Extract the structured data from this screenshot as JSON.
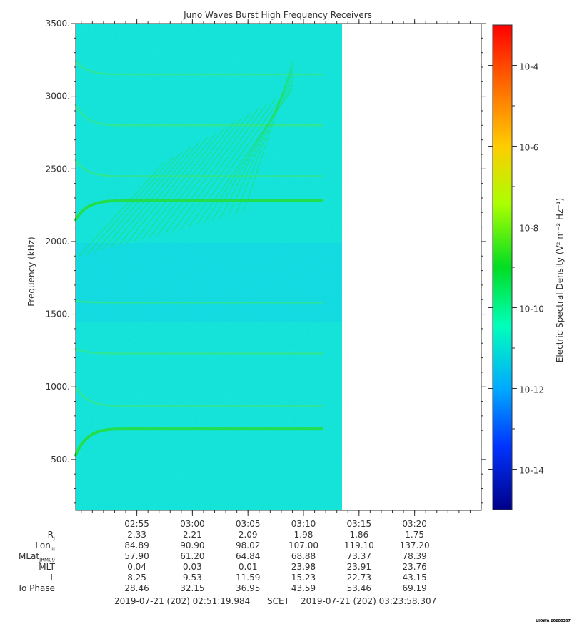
{
  "chart_data": {
    "type": "heatmap",
    "title": "Juno Waves Burst High Frequency Receivers",
    "ylabel": "Frequency (kHz)",
    "ylim": [
      150,
      3500
    ],
    "yticks": [
      "500.",
      "1000.",
      "1500.",
      "2000.",
      "2500.",
      "3000.",
      "3500."
    ],
    "x_ticks": [
      "02:55",
      "03:00",
      "03:05",
      "03:10",
      "03:15",
      "03:20"
    ],
    "x_range": [
      "02:49:30",
      "03:26:00"
    ],
    "data_coverage_end": "03:11:40",
    "emission_lines": [
      {
        "name": "band-3150",
        "start_khz": 3240,
        "end_khz": 3150
      },
      {
        "name": "band-2800",
        "start_khz": 2940,
        "end_khz": 2800
      },
      {
        "name": "band-2450",
        "start_khz": 2560,
        "end_khz": 2450
      },
      {
        "name": "band-2270",
        "start_khz": 2150,
        "end_khz": 2280
      },
      {
        "name": "band-1580",
        "start_khz": 1590,
        "end_khz": 1580
      },
      {
        "name": "band-1230",
        "start_khz": 1260,
        "end_khz": 1230
      },
      {
        "name": "band-870",
        "start_khz": 1000,
        "end_khz": 870
      },
      {
        "name": "band-700",
        "start_khz": 530,
        "end_khz": 710
      }
    ],
    "colorbar": {
      "label": "Electric Spectral Density (V² m⁻² Hz⁻¹)",
      "ticks": [
        "10-4",
        "10-6",
        "10-8",
        "10-10",
        "10-12",
        "10-14"
      ],
      "colors": [
        "#ff0000",
        "#ff8800",
        "#ffff00",
        "#88ff00",
        "#00cc33",
        "#00ffcc",
        "#00aaff",
        "#0044ff",
        "#0000aa"
      ]
    }
  },
  "ephemeris": {
    "rows": [
      {
        "name": "R",
        "sub": "J",
        "values": [
          "2.33",
          "2.21",
          "2.09",
          "1.98",
          "1.86",
          "1.75"
        ]
      },
      {
        "name": "Lon",
        "sub": "III",
        "values": [
          "84.89",
          "90.90",
          "98.02",
          "107.00",
          "119.10",
          "137.20"
        ]
      },
      {
        "name": "MLat",
        "sub": "JRM09",
        "values": [
          "57.90",
          "61.20",
          "64.84",
          "68.88",
          "73.37",
          "78.39"
        ]
      },
      {
        "name": "MLT",
        "sub": "",
        "values": [
          "0.04",
          "0.03",
          "0.01",
          "23.98",
          "23.91",
          "23.76"
        ]
      },
      {
        "name": "L",
        "sub": "",
        "values": [
          "8.25",
          "9.53",
          "11.59",
          "15.23",
          "22.73",
          "43.15"
        ]
      },
      {
        "name": "Io Phase",
        "sub": "",
        "values": [
          "28.46",
          "32.15",
          "36.95",
          "43.59",
          "53.46",
          "69.19"
        ]
      }
    ]
  },
  "footer": {
    "start": "2019-07-21 (202) 02:51:19.984",
    "mid": "SCET",
    "end": "2019-07-21 (202) 03:23:58.307"
  },
  "credit": "UIOWA 20200307"
}
